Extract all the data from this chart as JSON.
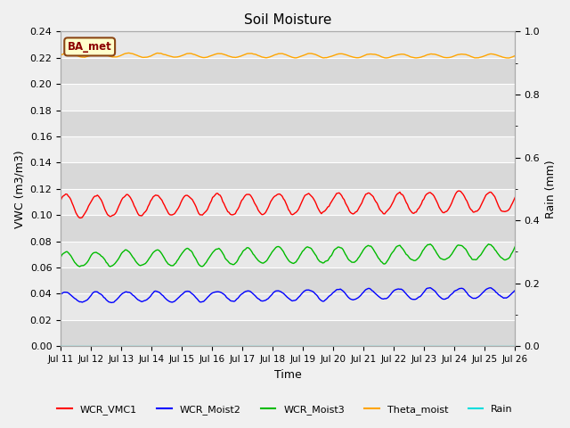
{
  "title": "Soil Moisture",
  "xlabel": "Time",
  "ylabel_left": "VWC (m3/m3)",
  "ylabel_right": "Rain (mm)",
  "ylim_left": [
    0.0,
    0.24
  ],
  "ylim_right": [
    0.0,
    1.0
  ],
  "yticks_left": [
    0.0,
    0.02,
    0.04,
    0.06,
    0.08,
    0.1,
    0.12,
    0.14,
    0.16,
    0.18,
    0.2,
    0.22,
    0.24
  ],
  "yticks_right": [
    0.0,
    0.2,
    0.4,
    0.6,
    0.8,
    1.0
  ],
  "bg_color": "#f0f0f0",
  "band_dark": "#d8d8d8",
  "band_light": "#e8e8e8",
  "grid_color": "#ffffff",
  "label_box_text": "BA_met",
  "label_box_facecolor": "#ffffcc",
  "label_box_edgecolor": "#8b4513",
  "label_box_textcolor": "#8b0000",
  "n_points": 360,
  "xtick_labels": [
    "Jul 11",
    "Jul 12",
    "Jul 13",
    "Jul 14",
    "Jul 15",
    "Jul 16",
    "Jul 17",
    "Jul 18",
    "Jul 19",
    "Jul 20",
    "Jul 21",
    "Jul 22",
    "Jul 23",
    "Jul 24",
    "Jul 25",
    "Jul 26"
  ],
  "series": {
    "WCR_VMC1": {
      "color": "#ff0000",
      "base": 0.107,
      "amplitude": 0.008,
      "trend": 0.0002,
      "freq": 1.0,
      "phase": 0.5
    },
    "WCR_Moist2": {
      "color": "#0000ff",
      "base": 0.037,
      "amplitude": 0.004,
      "trend": 0.00025,
      "freq": 1.0,
      "phase": 0.5
    },
    "WCR_Moist3": {
      "color": "#00bb00",
      "base": 0.066,
      "amplitude": 0.006,
      "trend": 0.0004,
      "freq": 1.0,
      "phase": 0.5
    },
    "Theta_moist": {
      "color": "#ffa500",
      "base": 0.222,
      "amplitude": 0.0015,
      "trend": -5e-05,
      "freq": 1.0,
      "phase": 0.0
    }
  },
  "rain_color": "#00dddd",
  "legend_items": [
    {
      "label": "WCR_VMC1",
      "color": "#ff0000"
    },
    {
      "label": "WCR_Moist2",
      "color": "#0000ff"
    },
    {
      "label": "WCR_Moist3",
      "color": "#00bb00"
    },
    {
      "label": "Theta_moist",
      "color": "#ffa500"
    },
    {
      "label": "Rain",
      "color": "#00dddd"
    }
  ]
}
